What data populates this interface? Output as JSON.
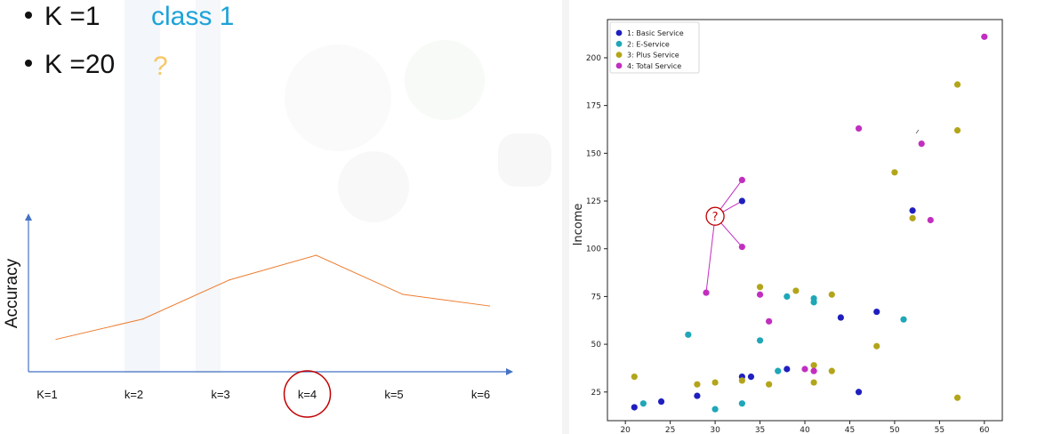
{
  "bullets": [
    {
      "text": "K =1",
      "answer": "class 1"
    },
    {
      "text": "K =20",
      "answer": "?"
    }
  ],
  "colors": {
    "class1_text": "#1ca3d8",
    "question_text": "#f6c867",
    "axis_arrow": "#4472c4",
    "accuracy_line": "#ed7d31",
    "highlight_circle": "#c00000",
    "basic": "#1f1fbf",
    "eservice": "#1fa7b8",
    "plus": "#b3a51a",
    "total": "#c22fbf"
  },
  "chart_data": [
    {
      "type": "line",
      "ylabel": "Accuracy",
      "xlabel": "",
      "categories": [
        "K=1",
        "k=2",
        "k=3",
        "k=4",
        "k=5",
        "k=6"
      ],
      "values": [
        0.15,
        0.29,
        0.56,
        0.73,
        0.46,
        0.38
      ],
      "ylim": [
        0,
        1
      ],
      "highlight": "k=4",
      "grid": false
    },
    {
      "type": "scatter",
      "xlabel": "",
      "ylabel": "Income",
      "xlim": [
        18,
        62
      ],
      "ylim": [
        10,
        220
      ],
      "xticks": [
        20,
        25,
        30,
        35,
        40,
        45,
        50,
        55,
        60
      ],
      "yticks": [
        25,
        50,
        75,
        100,
        125,
        150,
        175,
        200
      ],
      "legend_position": "top-left",
      "query_label": "?",
      "query_point": [
        30,
        117
      ],
      "neighbors": [
        [
          33,
          136
        ],
        [
          33,
          125
        ],
        [
          33,
          101
        ],
        [
          29,
          77
        ]
      ],
      "series": [
        {
          "name": "1: Basic Service",
          "color_key": "basic",
          "points": [
            [
              21,
              17
            ],
            [
              24,
              20
            ],
            [
              28,
              23
            ],
            [
              33,
              33
            ],
            [
              34,
              33
            ],
            [
              38,
              37
            ],
            [
              44,
              64
            ],
            [
              46,
              25
            ],
            [
              48,
              67
            ],
            [
              52,
              120
            ],
            [
              33,
              125
            ]
          ]
        },
        {
          "name": "2: E-Service",
          "color_key": "eservice",
          "points": [
            [
              22,
              19
            ],
            [
              27,
              55
            ],
            [
              30,
              16
            ],
            [
              33,
              19
            ],
            [
              35,
              52
            ],
            [
              37,
              36
            ],
            [
              38,
              75
            ],
            [
              41,
              72
            ],
            [
              41,
              74
            ],
            [
              51,
              63
            ]
          ]
        },
        {
          "name": "3: Plus Service",
          "color_key": "plus",
          "points": [
            [
              21,
              33
            ],
            [
              28,
              29
            ],
            [
              30,
              30
            ],
            [
              33,
              31
            ],
            [
              35,
              80
            ],
            [
              36,
              29
            ],
            [
              39,
              78
            ],
            [
              41,
              39
            ],
            [
              41,
              30
            ],
            [
              43,
              76
            ],
            [
              43,
              36
            ],
            [
              48,
              49
            ],
            [
              50,
              140
            ],
            [
              52,
              116
            ],
            [
              57,
              186
            ],
            [
              57,
              162
            ],
            [
              57,
              22
            ]
          ]
        },
        {
          "name": "4: Total Service",
          "color_key": "total",
          "points": [
            [
              29,
              77
            ],
            [
              33,
              136
            ],
            [
              33,
              101
            ],
            [
              35,
              76
            ],
            [
              36,
              62
            ],
            [
              40,
              37
            ],
            [
              41,
              36
            ],
            [
              46,
              163
            ],
            [
              53,
              155
            ],
            [
              54,
              115
            ],
            [
              60,
              211
            ]
          ]
        }
      ]
    }
  ]
}
